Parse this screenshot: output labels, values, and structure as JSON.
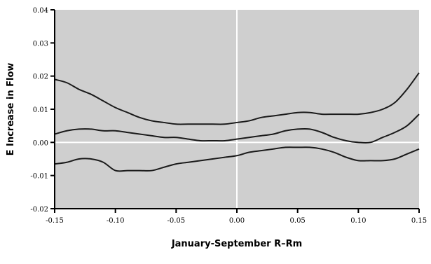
{
  "chart_data": {
    "type": "line",
    "title": "",
    "xlabel": "January-September R–Rm",
    "ylabel": "E Increase in Flow",
    "xlim": [
      -0.15,
      0.15
    ],
    "ylim": [
      -0.02,
      0.04
    ],
    "xticks": [
      "-0.15",
      "-0.10",
      "-0.05",
      "0.00",
      "0.05",
      "0.10",
      "0.15"
    ],
    "yticks": [
      "-0.02",
      "-0.01",
      "0.00",
      "0.01",
      "0.02",
      "0.03",
      "0.04"
    ],
    "grid": false,
    "background_color": "#cfcfcf",
    "line_color": "#1a1a1a",
    "reference_lines": {
      "x": 0.0,
      "y": 0.0,
      "color": "#ffffff"
    },
    "x": [
      -0.15,
      -0.14,
      -0.13,
      -0.12,
      -0.11,
      -0.1,
      -0.09,
      -0.08,
      -0.07,
      -0.06,
      -0.05,
      -0.04,
      -0.03,
      -0.02,
      -0.01,
      0.0,
      0.01,
      0.02,
      0.03,
      0.04,
      0.05,
      0.06,
      0.07,
      0.08,
      0.09,
      0.1,
      0.11,
      0.12,
      0.13,
      0.14,
      0.15
    ],
    "series": [
      {
        "values": [
          0.019,
          0.018,
          0.016,
          0.0145,
          0.0125,
          0.0105,
          0.009,
          0.0075,
          0.0065,
          0.006,
          0.0055,
          0.0055,
          0.0055,
          0.0055,
          0.0055,
          0.006,
          0.0065,
          0.0075,
          0.008,
          0.0085,
          0.009,
          0.009,
          0.0085,
          0.0085,
          0.0085,
          0.0085,
          0.009,
          0.01,
          0.012,
          0.016,
          0.021
        ]
      },
      {
        "values": [
          0.0025,
          0.0035,
          0.004,
          0.004,
          0.0035,
          0.0035,
          0.003,
          0.0025,
          0.002,
          0.0015,
          0.0015,
          0.001,
          0.0005,
          0.0005,
          0.0005,
          0.001,
          0.0015,
          0.002,
          0.0025,
          0.0035,
          0.004,
          0.004,
          0.003,
          0.0015,
          0.0005,
          0.0,
          0.0,
          0.0015,
          0.003,
          0.005,
          0.0085
        ]
      },
      {
        "values": [
          -0.0065,
          -0.006,
          -0.005,
          -0.005,
          -0.006,
          -0.0085,
          -0.0085,
          -0.0085,
          -0.0085,
          -0.0075,
          -0.0065,
          -0.006,
          -0.0055,
          -0.005,
          -0.0045,
          -0.004,
          -0.003,
          -0.0025,
          -0.002,
          -0.0015,
          -0.0015,
          -0.0015,
          -0.002,
          -0.003,
          -0.0045,
          -0.0055,
          -0.0055,
          -0.0055,
          -0.005,
          -0.0035,
          -0.002
        ]
      }
    ]
  }
}
